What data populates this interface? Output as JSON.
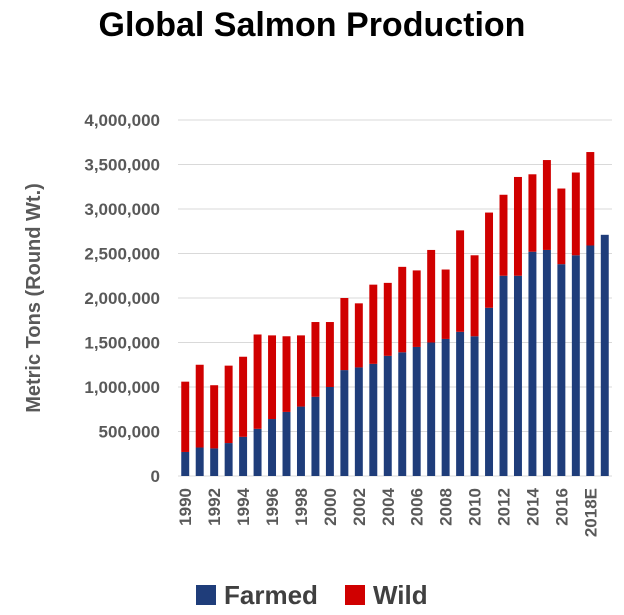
{
  "chart_data": {
    "type": "bar",
    "stacked": true,
    "title": "Global Salmon Production",
    "xlabel": "",
    "ylabel": "Metric Tons (Round Wt.)",
    "ylim": [
      0,
      4000000
    ],
    "yticks": [
      "0",
      "500,000",
      "1,000,000",
      "1,500,000",
      "2,000,000",
      "2,500,000",
      "3,000,000",
      "3,500,000",
      "4,000,000"
    ],
    "grid": true,
    "legend_position": "bottom",
    "categories": [
      "1990",
      "1991",
      "1992",
      "1993",
      "1994",
      "1995",
      "1996",
      "1997",
      "1998",
      "1999",
      "2000",
      "2001",
      "2002",
      "2003",
      "2004",
      "2005",
      "2006",
      "2007",
      "2008",
      "2009",
      "2010",
      "2011",
      "2012",
      "2013",
      "2014",
      "2015",
      "2016",
      "2017",
      "2018E",
      "2019"
    ],
    "tick_labels": [
      "1990",
      "",
      "1992",
      "",
      "1994",
      "",
      "1996",
      "",
      "1998",
      "",
      "2000",
      "",
      "2002",
      "",
      "2004",
      "",
      "2006",
      "",
      "2008",
      "",
      "2010",
      "",
      "2012",
      "",
      "2014",
      "",
      "2016",
      "",
      "2018E",
      ""
    ],
    "series": [
      {
        "name": "Farmed",
        "color": "#1f3d7a",
        "values": [
          270000,
          320000,
          310000,
          370000,
          440000,
          530000,
          640000,
          720000,
          780000,
          890000,
          1000000,
          1190000,
          1220000,
          1260000,
          1350000,
          1390000,
          1450000,
          1500000,
          1540000,
          1620000,
          1570000,
          1890000,
          2250000,
          2250000,
          2520000,
          2540000,
          2380000,
          2480000,
          2590000,
          2710000
        ]
      },
      {
        "name": "Wild",
        "color": "#d00000",
        "values": [
          790000,
          930000,
          710000,
          870000,
          900000,
          1060000,
          940000,
          850000,
          800000,
          840000,
          730000,
          810000,
          720000,
          890000,
          820000,
          960000,
          860000,
          1040000,
          780000,
          1140000,
          910000,
          1070000,
          910000,
          1110000,
          870000,
          1010000,
          850000,
          930000,
          1050000,
          0
        ]
      }
    ]
  }
}
